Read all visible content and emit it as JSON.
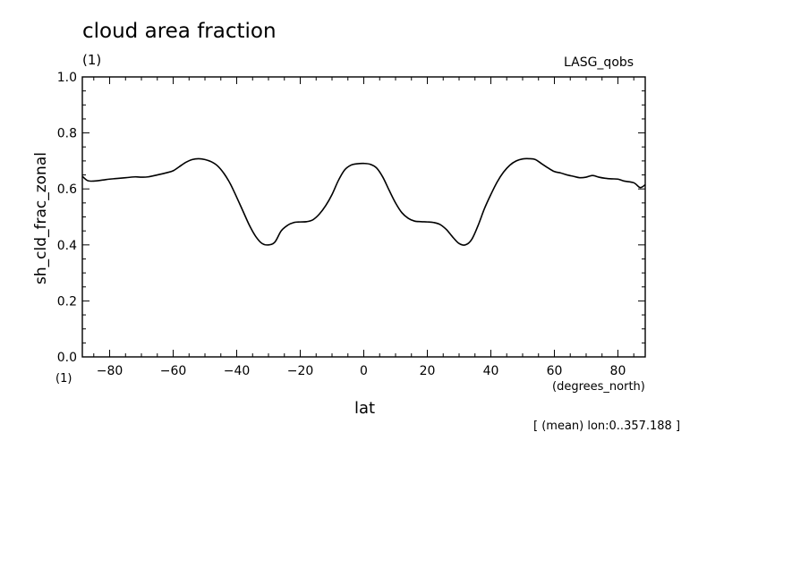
{
  "chart_data": {
    "type": "line",
    "title": "cloud area fraction",
    "units": "(1)",
    "dataset": "LASG_qobs",
    "xlabel": "lat",
    "xunits": "(degrees_north)",
    "ylabel": "sh_cld_frac_zonal",
    "yunits": "(1)",
    "footer": "[ (mean) lon:0..357.188 ]",
    "xlim": [
      -88.6,
      88.6
    ],
    "ylim": [
      0.0,
      1.0
    ],
    "xticks": [
      -80,
      -60,
      -40,
      -20,
      0,
      20,
      40,
      60,
      80
    ],
    "xtick_labels": [
      "−80",
      "−60",
      "−40",
      "−20",
      "0",
      "20",
      "40",
      "60",
      "80"
    ],
    "yticks": [
      0.0,
      0.2,
      0.4,
      0.6,
      0.8,
      1.0
    ],
    "ytick_labels": [
      "0.0",
      "0.2",
      "0.4",
      "0.6",
      "0.8",
      "1.0"
    ],
    "grid": false,
    "series": [
      {
        "x": [
          -88.6,
          -87,
          -85,
          -82,
          -80,
          -75,
          -72,
          -70,
          -68,
          -65,
          -62,
          -60,
          -58,
          -56,
          -54,
          -52,
          -50,
          -48,
          -46,
          -44,
          -42,
          -40,
          -38,
          -36,
          -34,
          -32,
          -30,
          -28,
          -26,
          -24,
          -22,
          -20,
          -18,
          -16,
          -14,
          -12,
          -10,
          -8,
          -6,
          -4,
          -2,
          0,
          2,
          4,
          6,
          8,
          10,
          12,
          14,
          16,
          18,
          20,
          22,
          24,
          26,
          28,
          30,
          32,
          34,
          36,
          38,
          40,
          42,
          44,
          46,
          48,
          50,
          52,
          54,
          56,
          58,
          60,
          62,
          64,
          66,
          68,
          70,
          72,
          74,
          76,
          78,
          80,
          82,
          85,
          87,
          88.6
        ],
        "y": [
          0.645,
          0.63,
          0.628,
          0.632,
          0.635,
          0.64,
          0.643,
          0.642,
          0.643,
          0.65,
          0.658,
          0.665,
          0.68,
          0.695,
          0.705,
          0.708,
          0.705,
          0.697,
          0.682,
          0.655,
          0.618,
          0.57,
          0.52,
          0.47,
          0.43,
          0.405,
          0.4,
          0.41,
          0.45,
          0.47,
          0.48,
          0.482,
          0.483,
          0.49,
          0.51,
          0.54,
          0.58,
          0.63,
          0.668,
          0.685,
          0.69,
          0.691,
          0.688,
          0.675,
          0.642,
          0.595,
          0.55,
          0.515,
          0.495,
          0.485,
          0.483,
          0.482,
          0.48,
          0.473,
          0.455,
          0.428,
          0.405,
          0.4,
          0.42,
          0.47,
          0.53,
          0.58,
          0.625,
          0.66,
          0.685,
          0.7,
          0.707,
          0.708,
          0.705,
          0.69,
          0.675,
          0.662,
          0.657,
          0.65,
          0.645,
          0.64,
          0.642,
          0.648,
          0.642,
          0.638,
          0.636,
          0.635,
          0.628,
          0.622,
          0.605,
          0.615
        ]
      }
    ]
  }
}
